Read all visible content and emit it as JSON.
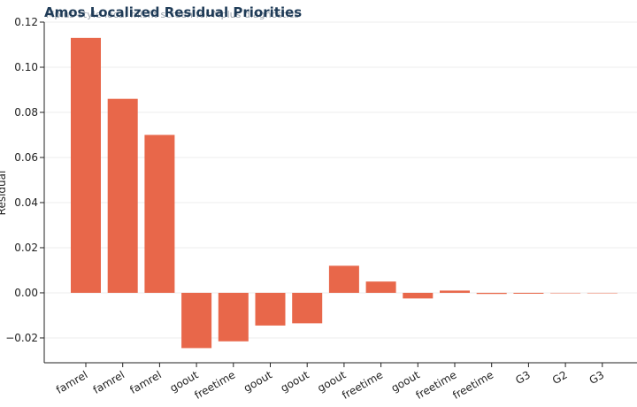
{
  "chart_data": {
    "type": "bar",
    "title": "Amos Localized Residual Priorities",
    "subtitle": "Mplus-style local misfit screen for Mplus diagnostics",
    "xlabel": "",
    "ylabel": "Residual",
    "categories": [
      "famrel",
      "famrel",
      "famrel",
      "goout",
      "freetime",
      "goout",
      "goout",
      "goout",
      "freetime",
      "goout",
      "freetime",
      "freetime",
      "G3",
      "G2",
      "G3"
    ],
    "values": [
      0.113,
      0.086,
      0.07,
      -0.0245,
      -0.0215,
      -0.0145,
      -0.0135,
      0.012,
      0.005,
      -0.0025,
      0.001,
      -0.0005,
      -0.0004,
      -0.0002,
      0.0
    ],
    "ylim": [
      -0.031,
      0.12
    ],
    "yticks": [
      -0.02,
      0.0,
      0.02,
      0.04,
      0.06,
      0.08,
      0.1,
      0.12
    ],
    "ytick_labels": [
      "−0.02",
      "0.00",
      "0.02",
      "0.04",
      "0.06",
      "0.08",
      "0.10",
      "0.12"
    ],
    "grid": true,
    "legend": "none",
    "colors": {
      "bar": "#e8674a",
      "title": "#1f3b57",
      "grid": "#ececec",
      "axis": "#222222"
    }
  }
}
